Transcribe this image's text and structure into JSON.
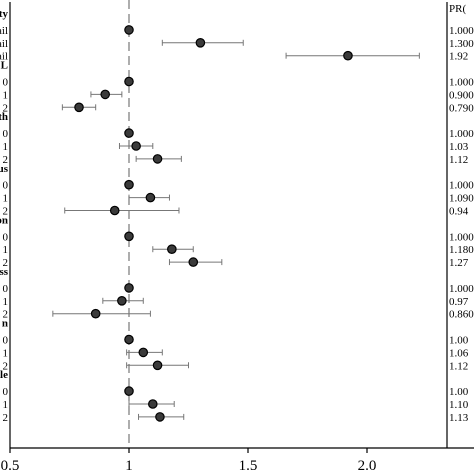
{
  "chart_data": {
    "type": "scatter",
    "title": "",
    "xlabel": "",
    "ylabel": "",
    "xlim": [
      0.5,
      2.0
    ],
    "xticks": [
      "0.5",
      "1",
      "1.5",
      "2.0"
    ],
    "reference_line": 1.0,
    "value_column_header": "PR(",
    "groups": [
      {
        "label": "ty",
        "rows": [
          {
            "label": "ail",
            "pr": 1.0,
            "lo": 1.0,
            "hi": 1.0,
            "pr_text": "1.000"
          },
          {
            "label": "ail",
            "pr": 1.3,
            "lo": 1.14,
            "hi": 1.48,
            "pr_text": "1.300"
          },
          {
            "label": "ail",
            "pr": 1.92,
            "lo": 1.66,
            "hi": 2.22,
            "pr_text": "1.92"
          }
        ]
      },
      {
        "label": "L",
        "rows": [
          {
            "label": "0",
            "pr": 1.0,
            "lo": 1.0,
            "hi": 1.0,
            "pr_text": "1.000"
          },
          {
            "label": "1",
            "pr": 0.9,
            "lo": 0.84,
            "hi": 0.97,
            "pr_text": "0.900"
          },
          {
            "label": "2",
            "pr": 0.79,
            "lo": 0.72,
            "hi": 0.86,
            "pr_text": "0.790"
          }
        ]
      },
      {
        "label": "th",
        "rows": [
          {
            "label": "0",
            "pr": 1.0,
            "lo": 1.0,
            "hi": 1.0,
            "pr_text": "1.000"
          },
          {
            "label": "1",
            "pr": 1.03,
            "lo": 0.96,
            "hi": 1.1,
            "pr_text": "1.03"
          },
          {
            "label": "2",
            "pr": 1.12,
            "lo": 1.03,
            "hi": 1.22,
            "pr_text": "1.12"
          }
        ]
      },
      {
        "label": "us",
        "rows": [
          {
            "label": "0",
            "pr": 1.0,
            "lo": 1.0,
            "hi": 1.0,
            "pr_text": "1.000"
          },
          {
            "label": "1",
            "pr": 1.09,
            "lo": 1.0,
            "hi": 1.17,
            "pr_text": "1.090"
          },
          {
            "label": "2",
            "pr": 0.94,
            "lo": 0.73,
            "hi": 1.21,
            "pr_text": "0.94"
          }
        ]
      },
      {
        "label": "on",
        "rows": [
          {
            "label": "0",
            "pr": 1.0,
            "lo": 1.0,
            "hi": 1.0,
            "pr_text": "1.000"
          },
          {
            "label": "1",
            "pr": 1.18,
            "lo": 1.1,
            "hi": 1.27,
            "pr_text": "1.180"
          },
          {
            "label": "2",
            "pr": 1.27,
            "lo": 1.17,
            "hi": 1.39,
            "pr_text": "1.27"
          }
        ]
      },
      {
        "label": "ss",
        "rows": [
          {
            "label": "0",
            "pr": 1.0,
            "lo": 1.0,
            "hi": 1.0,
            "pr_text": "1.000"
          },
          {
            "label": "1",
            "pr": 0.97,
            "lo": 0.89,
            "hi": 1.06,
            "pr_text": "0.97"
          },
          {
            "label": "2",
            "pr": 0.86,
            "lo": 0.68,
            "hi": 1.09,
            "pr_text": "0.860"
          }
        ]
      },
      {
        "label": "n",
        "rows": [
          {
            "label": "0",
            "pr": 1.0,
            "lo": 1.0,
            "hi": 1.0,
            "pr_text": "1.00"
          },
          {
            "label": "1",
            "pr": 1.06,
            "lo": 0.99,
            "hi": 1.14,
            "pr_text": "1.06"
          },
          {
            "label": "2",
            "pr": 1.12,
            "lo": 0.99,
            "hi": 1.25,
            "pr_text": "1.12"
          }
        ]
      },
      {
        "label": "le",
        "rows": [
          {
            "label": "0",
            "pr": 1.0,
            "lo": 1.0,
            "hi": 1.0,
            "pr_text": "1.00"
          },
          {
            "label": "1",
            "pr": 1.1,
            "lo": 1.0,
            "hi": 1.19,
            "pr_text": "1.10"
          },
          {
            "label": "2",
            "pr": 1.13,
            "lo": 1.04,
            "hi": 1.23,
            "pr_text": "1.13"
          }
        ]
      }
    ],
    "colors": {
      "point_fill": "#3a3a3a",
      "point_stroke": "#000000",
      "whisker": "#777777",
      "reference_line": "#777777",
      "axis": "#000000"
    }
  }
}
